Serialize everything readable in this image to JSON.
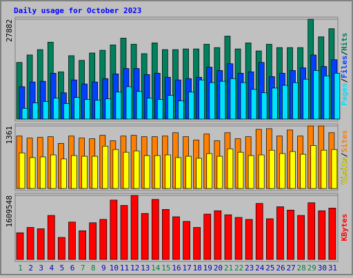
{
  "chart_data": [
    {
      "type": "bar",
      "title": "Daily usage for October 2023",
      "legend_separator": "/",
      "categories": [
        "1",
        "2",
        "3",
        "4",
        "5",
        "6",
        "7",
        "8",
        "9",
        "10",
        "11",
        "12",
        "13",
        "14",
        "15",
        "16",
        "17",
        "18",
        "19",
        "20",
        "21",
        "22",
        "23",
        "24",
        "25",
        "26",
        "27",
        "28",
        "29",
        "30",
        "31"
      ],
      "category_colors": [
        "#008040",
        "#0000c0",
        "#0000c0",
        "#0000c0",
        "#0000c0",
        "#0000c0",
        "#008040",
        "#008040",
        "#0000c0",
        "#0000c0",
        "#0000c0",
        "#0000c0",
        "#0000c0",
        "#008040",
        "#008040",
        "#0000c0",
        "#0000c0",
        "#0000c0",
        "#0000c0",
        "#0000c0",
        "#008040",
        "#008040",
        "#0000c0",
        "#0000c0",
        "#0000c0",
        "#0000c0",
        "#0000c0",
        "#008040",
        "#008040",
        "#0000c0",
        "#0000c0"
      ],
      "ylim": [
        0,
        27882
      ],
      "yticks": [
        27882
      ],
      "series": [
        {
          "name": "Hits",
          "color": "#00805c",
          "values": [
            15826,
            17898,
            19405,
            21478,
            13188,
            17710,
            16391,
            18463,
            19217,
            20724,
            22608,
            20913,
            18275,
            21289,
            19405,
            19405,
            19594,
            19594,
            20913,
            19970,
            23173,
            19594,
            21289,
            19028,
            20913,
            19970,
            19970,
            19970,
            27882,
            22985,
            25246
          ]
        },
        {
          "name": "Files",
          "color": "#0040ff",
          "values": [
            9043,
            10362,
            10550,
            12811,
            7348,
            10927,
            9797,
            10362,
            11304,
            12623,
            14130,
            14130,
            12434,
            12811,
            11681,
            10927,
            11304,
            11681,
            14507,
            13565,
            15449,
            12811,
            13188,
            15826,
            11869,
            12811,
            13565,
            14318,
            17898,
            14695,
            16579
          ]
        },
        {
          "name": "Pages",
          "color": "#00e0ff",
          "values": [
            3014,
            4522,
            4898,
            5840,
            4333,
            6029,
            5464,
            5275,
            5652,
            7536,
            9043,
            7724,
            5840,
            5464,
            6594,
            5087,
            7536,
            10927,
            10174,
            10550,
            11304,
            10174,
            8290,
            7348,
            8666,
            9420,
            10174,
            11116,
            13565,
            12058,
            12811
          ]
        }
      ]
    },
    {
      "type": "bar",
      "ylim": [
        0,
        1361
      ],
      "yticks": [
        1361
      ],
      "series": [
        {
          "name": "Sites",
          "color": "#ff8000",
          "values": [
            1141,
            1097,
            1112,
            1127,
            980,
            1141,
            1097,
            1083,
            1156,
            1039,
            1141,
            1156,
            1127,
            1127,
            1141,
            1214,
            1127,
            1053,
            1185,
            1039,
            1214,
            1083,
            1127,
            1287,
            1302,
            1141,
            1273,
            1141,
            1361,
            1361,
            1214
          ]
        },
        {
          "name": "Visits",
          "color": "#ffff00",
          "values": [
            775,
            673,
            688,
            732,
            644,
            717,
            702,
            702,
            922,
            849,
            790,
            819,
            717,
            717,
            732,
            673,
            702,
            658,
            761,
            702,
            863,
            790,
            717,
            732,
            834,
            761,
            805,
            746,
            936,
            834,
            849
          ]
        }
      ]
    },
    {
      "type": "bar",
      "ylim": [
        0,
        1609548
      ],
      "yticks": [
        1609548
      ],
      "series": [
        {
          "name": "KBytes",
          "color": "#ff0000",
          "values": [
            670640,
            804770,
            771240,
            1106570,
            553280,
            938900,
            720940,
            922130,
            1005960,
            1492170,
            1358050,
            1609548,
            1156850,
            1508940,
            1257450,
            1073020,
            955660,
            804770,
            1140090,
            1223920,
            1123320,
            1056260,
            1005960,
            1408340,
            1022730,
            1324510,
            1240680,
            1106570,
            1425110,
            1223920,
            1290980
          ]
        }
      ]
    }
  ]
}
